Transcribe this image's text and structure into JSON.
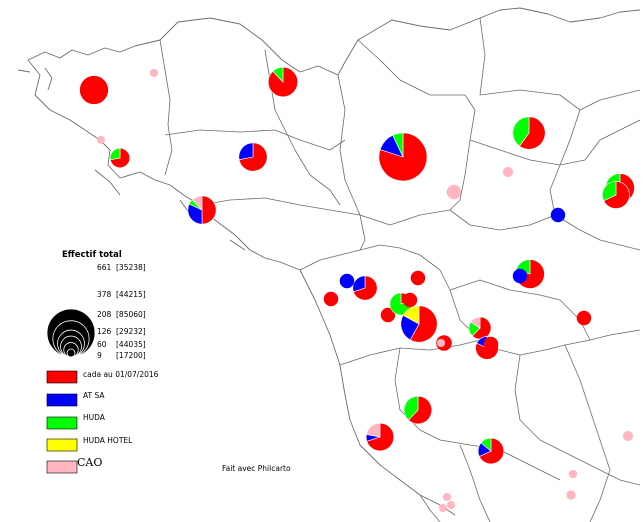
{
  "legend": {
    "title": "Effectif total",
    "sizes": [
      {
        "value": "661",
        "bracket": "[35238]"
      },
      {
        "value": "378",
        "bracket": "[44215]"
      },
      {
        "value": "208",
        "bracket": "[85060]"
      },
      {
        "value": "126",
        "bracket": "[29232]"
      },
      {
        "value": "60",
        "bracket": "[44035]"
      },
      {
        "value": "9",
        "bracket": "[17200]"
      }
    ],
    "categories": [
      {
        "label": "cada au 01/07/2016",
        "color": "#ff0000"
      },
      {
        "label": "AT SA",
        "color": "#0000ff"
      },
      {
        "label": "HUDA",
        "color": "#00ff00"
      },
      {
        "label": "HUDA HOTEL",
        "color": "#ffff00"
      },
      {
        "label": "CAO",
        "color": "#ffb6c1"
      }
    ]
  },
  "credit": "Fait avec Philcarto",
  "colors": {
    "cada": "#ff0000",
    "atsa": "#0000ff",
    "huda": "#00ff00",
    "hotel": "#ffff00",
    "cao": "#ffb6c1",
    "boundary": "#6b6b6b"
  },
  "symbols": [
    {
      "id": "brest",
      "total": 230,
      "cada": 1.0,
      "atsa": 0,
      "huda": 0,
      "hotel": 0,
      "cao": 0
    },
    {
      "id": "quimper",
      "total": 110,
      "cada": 0.72,
      "atsa": 0,
      "huda": 0.28,
      "hotel": 0,
      "cao": 0
    },
    {
      "id": "morlaix",
      "total": 250,
      "cada": 0.88,
      "atsa": 0,
      "huda": 0.12,
      "hotel": 0,
      "cao": 0
    },
    {
      "id": "st-brieuc",
      "total": 230,
      "cada": 0.72,
      "atsa": 0.28,
      "huda": 0,
      "hotel": 0,
      "cao": 0
    },
    {
      "id": "rennes",
      "total": 661,
      "cada": 0.8,
      "atsa": 0.13,
      "huda": 0.07,
      "hotel": 0,
      "cao": 0
    },
    {
      "id": "alencon",
      "total": 300,
      "cada": 0.6,
      "atsa": 0,
      "huda": 0.4,
      "hotel": 0,
      "cao": 0
    },
    {
      "id": "vannes",
      "total": 230,
      "cada": 0.5,
      "atsa": 0.32,
      "huda": 0.06,
      "hotel": 0,
      "cao": 0.12
    },
    {
      "id": "le-mans-a",
      "total": 240,
      "cada": 0.8,
      "atsa": 0,
      "huda": 0.2,
      "hotel": 0,
      "cao": 0
    },
    {
      "id": "le-mans-b",
      "total": 210,
      "cada": 0.68,
      "atsa": 0,
      "huda": 0.32,
      "hotel": 0,
      "cao": 0
    },
    {
      "id": "orne-blue",
      "total": 60,
      "cada": 0,
      "atsa": 1.0,
      "huda": 0,
      "hotel": 0,
      "cao": 0
    },
    {
      "id": "laval",
      "total": 240,
      "cada": 0.8,
      "atsa": 0,
      "huda": 0.2,
      "hotel": 0,
      "cao": 0
    },
    {
      "id": "laval-blue",
      "total": 60,
      "cada": 0,
      "atsa": 1.0,
      "huda": 0,
      "hotel": 0,
      "cao": 0
    },
    {
      "id": "chateaubriant",
      "total": 170,
      "cada": 0.7,
      "atsa": 0.3,
      "huda": 0,
      "hotel": 0,
      "cao": 0
    },
    {
      "id": "pontchateau",
      "total": 60,
      "cada": 0,
      "atsa": 1.0,
      "huda": 0,
      "hotel": 0,
      "cao": 0
    },
    {
      "id": "st-nazaire",
      "total": 60,
      "cada": 1.0,
      "atsa": 0,
      "huda": 0,
      "hotel": 0,
      "cao": 0
    },
    {
      "id": "ancenis",
      "total": 60,
      "cada": 1.0,
      "atsa": 0,
      "huda": 0,
      "hotel": 0,
      "cao": 0
    },
    {
      "id": "nantes-w",
      "total": 60,
      "cada": 1.0,
      "atsa": 0,
      "huda": 0,
      "hotel": 0,
      "cao": 0
    },
    {
      "id": "nantes-n",
      "total": 140,
      "cada": 0.2,
      "atsa": 0,
      "huda": 0.8,
      "hotel": 0,
      "cao": 0
    },
    {
      "id": "nantes-n2",
      "total": 60,
      "cada": 1.0,
      "atsa": 0,
      "huda": 0,
      "hotel": 0,
      "cao": 0
    },
    {
      "id": "nantes",
      "total": 378,
      "cada": 0.58,
      "atsa": 0.25,
      "huda": 0,
      "hotel": 0.17,
      "cao": 0
    },
    {
      "id": "nantes-s",
      "total": 70,
      "cada": 1.0,
      "atsa": 0,
      "huda": 0,
      "hotel": 0,
      "cao": 0
    },
    {
      "id": "angers",
      "total": 140,
      "cada": 0.62,
      "atsa": 0,
      "huda": 0.22,
      "hotel": 0,
      "cao": 0.16
    },
    {
      "id": "saumur",
      "total": 150,
      "cada": 0.82,
      "atsa": 0.18,
      "huda": 0,
      "hotel": 0,
      "cao": 0
    },
    {
      "id": "tours",
      "total": 60,
      "cada": 1.0,
      "atsa": 0,
      "huda": 0,
      "hotel": 0,
      "cao": 0
    },
    {
      "id": "chateau-gontier",
      "total": 60,
      "cada": 1.0,
      "atsa": 0,
      "huda": 0,
      "hotel": 0,
      "cao": 0
    },
    {
      "id": "la-roche",
      "total": 220,
      "cada": 0.62,
      "atsa": 0,
      "huda": 0.38,
      "hotel": 0,
      "cao": 0
    },
    {
      "id": "les-sables",
      "total": 220,
      "cada": 0.7,
      "atsa": 0.08,
      "huda": 0,
      "hotel": 0,
      "cao": 0.22
    },
    {
      "id": "niort",
      "total": 190,
      "cada": 0.68,
      "atsa": 0.18,
      "huda": 0.14,
      "hotel": 0,
      "cao": 0
    },
    {
      "id": "cao-1",
      "total": 12,
      "cada": 0,
      "atsa": 0,
      "huda": 0,
      "hotel": 0,
      "cao": 1.0
    },
    {
      "id": "cao-2",
      "total": 12,
      "cada": 0,
      "atsa": 0,
      "huda": 0,
      "hotel": 0,
      "cao": 1.0
    },
    {
      "id": "cao-3",
      "total": 60,
      "cada": 0,
      "atsa": 0,
      "huda": 0,
      "hotel": 0,
      "cao": 1.0
    },
    {
      "id": "cao-4",
      "total": 30,
      "cada": 0,
      "atsa": 0,
      "huda": 0,
      "hotel": 0,
      "cao": 1.0
    },
    {
      "id": "cao-5",
      "total": 20,
      "cada": 0,
      "atsa": 0,
      "huda": 0,
      "hotel": 0,
      "cao": 1.0
    },
    {
      "id": "cao-6",
      "total": 30,
      "cada": 0,
      "atsa": 0,
      "huda": 0,
      "hotel": 0,
      "cao": 1.0
    },
    {
      "id": "cao-7",
      "total": 20,
      "cada": 0,
      "atsa": 0,
      "huda": 0,
      "hotel": 0,
      "cao": 1.0
    },
    {
      "id": "cao-8",
      "total": 25,
      "cada": 0,
      "atsa": 0,
      "huda": 0,
      "hotel": 0,
      "cao": 1.0
    },
    {
      "id": "cao-9",
      "total": 15,
      "cada": 0,
      "atsa": 0,
      "huda": 0,
      "hotel": 0,
      "cao": 1.0
    },
    {
      "id": "cao-10",
      "total": 12,
      "cada": 0,
      "atsa": 0,
      "huda": 0,
      "hotel": 0,
      "cao": 1.0
    },
    {
      "id": "cao-11",
      "total": 12,
      "cada": 0,
      "atsa": 0,
      "huda": 0,
      "hotel": 0,
      "cao": 1.0
    }
  ]
}
